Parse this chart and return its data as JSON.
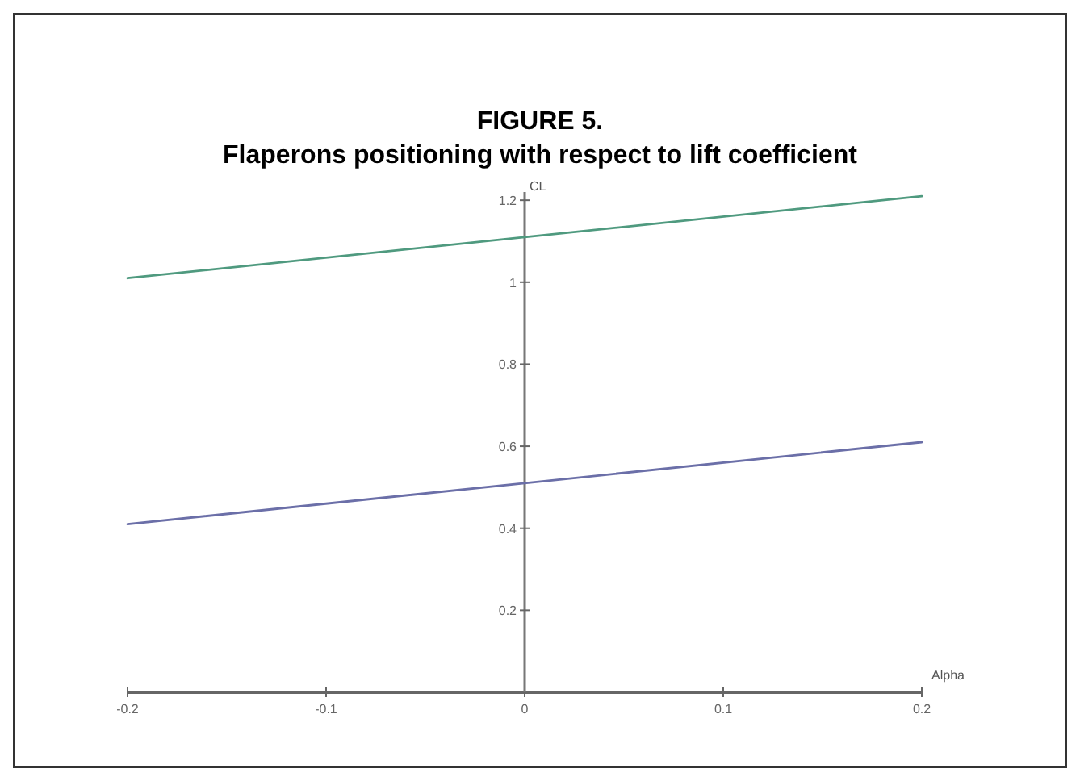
{
  "chart_data": {
    "type": "line",
    "title": "FIGURE 5.",
    "subtitle": "Flaperons positioning with respect to lift coefficient",
    "xlabel": "Alpha",
    "ylabel": "CL",
    "x": [
      -0.2,
      0,
      0.2
    ],
    "series": [
      {
        "color": "#4f9a7f",
        "values": [
          1.01,
          1.11,
          1.21
        ]
      },
      {
        "color": "#6b6fa8",
        "values": [
          0.41,
          0.51,
          0.61
        ]
      }
    ],
    "xlim": [
      -0.2,
      0.2
    ],
    "ylim": [
      0,
      1.22
    ],
    "xticks": [
      -0.2,
      -0.1,
      0,
      0.1,
      0.2
    ],
    "yticks": [
      0.2,
      0.4,
      0.6,
      0.8,
      1.0,
      1.2
    ],
    "marker": "none",
    "line_style": "solid"
  }
}
